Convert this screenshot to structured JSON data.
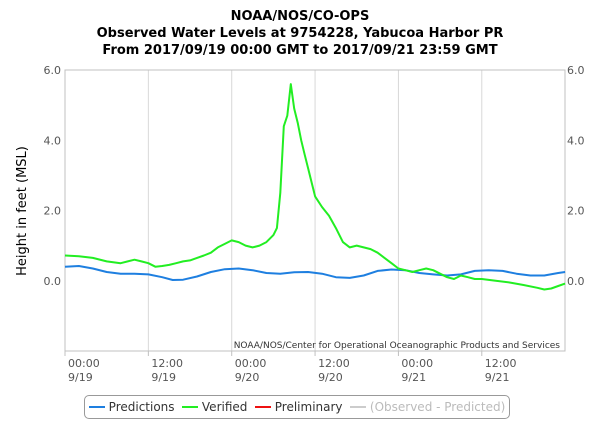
{
  "title": {
    "line1": "NOAA/NOS/CO-OPS",
    "line2": "Observed Water Levels at 9754228, Yabucoa Harbor PR",
    "line3": "From 2017/09/19 00:00 GMT to 2017/09/21 23:59 GMT"
  },
  "credit": "NOAA/NOS/Center for Operational Oceanographic Products and Services",
  "legend": {
    "items": [
      {
        "label": "Predictions",
        "color": "#1e7fe0"
      },
      {
        "label": "Verified",
        "color": "#22ee22"
      },
      {
        "label": "Preliminary",
        "color": "#ee1111"
      },
      {
        "label": "(Observed - Predicted)",
        "color": "#cccccc"
      }
    ]
  },
  "chart_data": {
    "type": "line",
    "title": "Observed Water Levels at 9754228, Yabucoa Harbor PR",
    "ylabel": "Height in feet (MSL)",
    "xlabel": "",
    "ylim": [
      -2.0,
      6.0
    ],
    "xlim_hours": [
      0,
      71.98
    ],
    "y_ticks": [
      {
        "value": 0.0,
        "label": "0.0"
      },
      {
        "value": 2.0,
        "label": "2.0"
      },
      {
        "value": 4.0,
        "label": "4.0"
      },
      {
        "value": 6.0,
        "label": "6.0"
      }
    ],
    "x_ticks": [
      {
        "hours": 0,
        "line1": "00:00",
        "line2": "9/19"
      },
      {
        "hours": 12,
        "line1": "12:00",
        "line2": "9/19"
      },
      {
        "hours": 24,
        "line1": "00:00",
        "line2": "9/20"
      },
      {
        "hours": 36,
        "line1": "12:00",
        "line2": "9/20"
      },
      {
        "hours": 48,
        "line1": "00:00",
        "line2": "9/21"
      },
      {
        "hours": 60,
        "line1": "12:00",
        "line2": "9/21"
      }
    ],
    "grid": "vertical",
    "series": [
      {
        "name": "Predictions",
        "color": "#1e7fe0",
        "x": [
          0,
          2,
          4,
          6,
          8,
          10,
          12,
          14,
          15.5,
          17,
          19,
          21,
          23,
          25,
          27,
          29,
          31,
          33,
          35,
          37,
          39,
          41,
          43,
          45,
          47,
          49,
          51,
          53,
          55,
          57,
          59,
          61,
          63,
          65,
          67,
          69,
          71,
          72
        ],
        "y": [
          0.4,
          0.42,
          0.35,
          0.25,
          0.2,
          0.2,
          0.18,
          0.1,
          0.02,
          0.03,
          0.12,
          0.25,
          0.33,
          0.35,
          0.3,
          0.22,
          0.2,
          0.24,
          0.25,
          0.2,
          0.1,
          0.08,
          0.15,
          0.28,
          0.32,
          0.3,
          0.22,
          0.18,
          0.15,
          0.18,
          0.28,
          0.3,
          0.28,
          0.2,
          0.15,
          0.15,
          0.22,
          0.25
        ]
      },
      {
        "name": "Verified",
        "color": "#22ee22",
        "x": [
          0,
          2,
          4,
          6,
          8,
          10,
          11,
          12,
          13,
          14,
          15,
          16,
          17,
          18,
          19,
          20,
          21,
          22,
          23,
          24,
          25,
          26,
          27,
          28,
          29,
          30,
          30.5,
          31,
          31.5,
          32,
          32.5,
          33,
          33.5,
          34,
          34.5,
          35,
          35.5,
          36,
          37,
          38,
          39,
          40,
          41,
          42,
          43,
          44,
          45,
          46,
          47,
          48,
          49,
          50,
          51,
          52,
          53,
          54,
          55,
          56,
          57,
          58,
          59,
          60,
          62,
          64,
          66,
          68,
          69,
          70,
          71,
          72
        ],
        "y": [
          0.72,
          0.7,
          0.65,
          0.55,
          0.5,
          0.6,
          0.55,
          0.5,
          0.4,
          0.42,
          0.45,
          0.5,
          0.55,
          0.58,
          0.65,
          0.72,
          0.8,
          0.95,
          1.05,
          1.15,
          1.1,
          1.0,
          0.95,
          1.0,
          1.1,
          1.3,
          1.5,
          2.5,
          4.4,
          4.7,
          5.6,
          4.9,
          4.5,
          4.0,
          3.6,
          3.2,
          2.8,
          2.4,
          2.1,
          1.85,
          1.5,
          1.1,
          0.95,
          1.0,
          0.95,
          0.9,
          0.8,
          0.65,
          0.5,
          0.35,
          0.3,
          0.25,
          0.3,
          0.35,
          0.3,
          0.2,
          0.1,
          0.05,
          0.15,
          0.1,
          0.05,
          0.05,
          0.0,
          -0.05,
          -0.12,
          -0.2,
          -0.25,
          -0.22,
          -0.15,
          -0.08
        ]
      }
    ]
  }
}
